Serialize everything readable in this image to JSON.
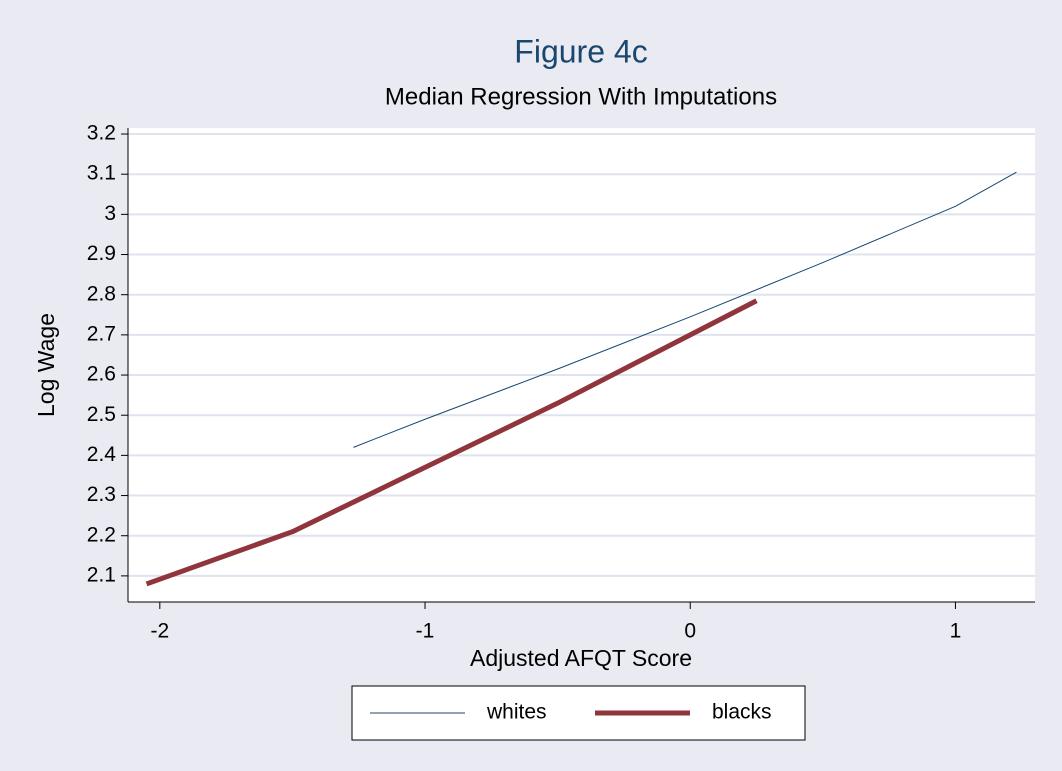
{
  "chart_data": {
    "type": "line",
    "title": "Figure 4c",
    "subtitle": "Median Regression With Imputations",
    "x_label": "Adjusted AFQT Score",
    "y_label": "Log Wage",
    "xlim": [
      -2.12,
      1.3
    ],
    "ylim": [
      2.035,
      3.215
    ],
    "xticks": [
      -2,
      -1,
      0,
      1
    ],
    "yticks": [
      2.1,
      2.2,
      2.3,
      2.4,
      2.5,
      2.6,
      2.7,
      2.8,
      2.9,
      3,
      3.1,
      3.2
    ],
    "grid": true,
    "legend": "bottom",
    "series": [
      {
        "name": "whites",
        "color": "#1a476f",
        "width": 1,
        "x": [
          -1.27,
          -1,
          -0.5,
          0,
          0.5,
          1,
          1.23
        ],
        "values": [
          2.42,
          2.49,
          2.615,
          2.745,
          2.88,
          3.02,
          3.105
        ]
      },
      {
        "name": "blacks",
        "color": "#90353b",
        "width": 5,
        "x": [
          -2.05,
          -1.5,
          -1,
          -0.5,
          0,
          0.25
        ],
        "values": [
          2.08,
          2.21,
          2.37,
          2.53,
          2.7,
          2.785
        ]
      }
    ]
  }
}
